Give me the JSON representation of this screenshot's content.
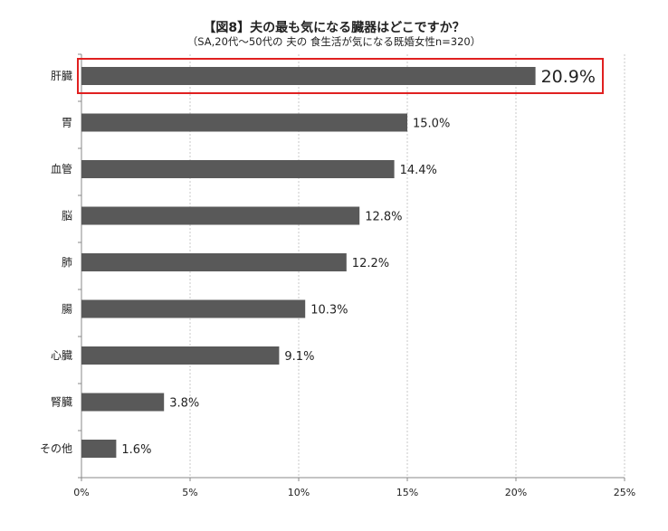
{
  "chart_data": {
    "type": "bar",
    "orientation": "horizontal",
    "title": "【図8】夫の最も気になる臓器はどこですか？",
    "subtitle": "（SA,20代～50代の 夫の 食生活が気になる既婚女性n=320）",
    "categories": [
      "肝臓",
      "胃",
      "血管",
      "脳",
      "肺",
      "腸",
      "心臓",
      "腎臓",
      "その他"
    ],
    "values": [
      20.9,
      15.0,
      14.4,
      12.8,
      12.2,
      10.3,
      9.1,
      3.8,
      1.6
    ],
    "data_labels": [
      "20.9%",
      "15.0%",
      "14.4%",
      "12.8%",
      "12.2%",
      "10.3%",
      "9.1%",
      "3.8%",
      "1.6%"
    ],
    "xlim": [
      0,
      25
    ],
    "xticks": [
      "0%",
      "5%",
      "10%",
      "15%",
      "20%",
      "25%"
    ],
    "grid": "vertical dashed",
    "bar_color": "#595959",
    "highlight": {
      "category": "肝臓",
      "color": "#e02020"
    }
  }
}
